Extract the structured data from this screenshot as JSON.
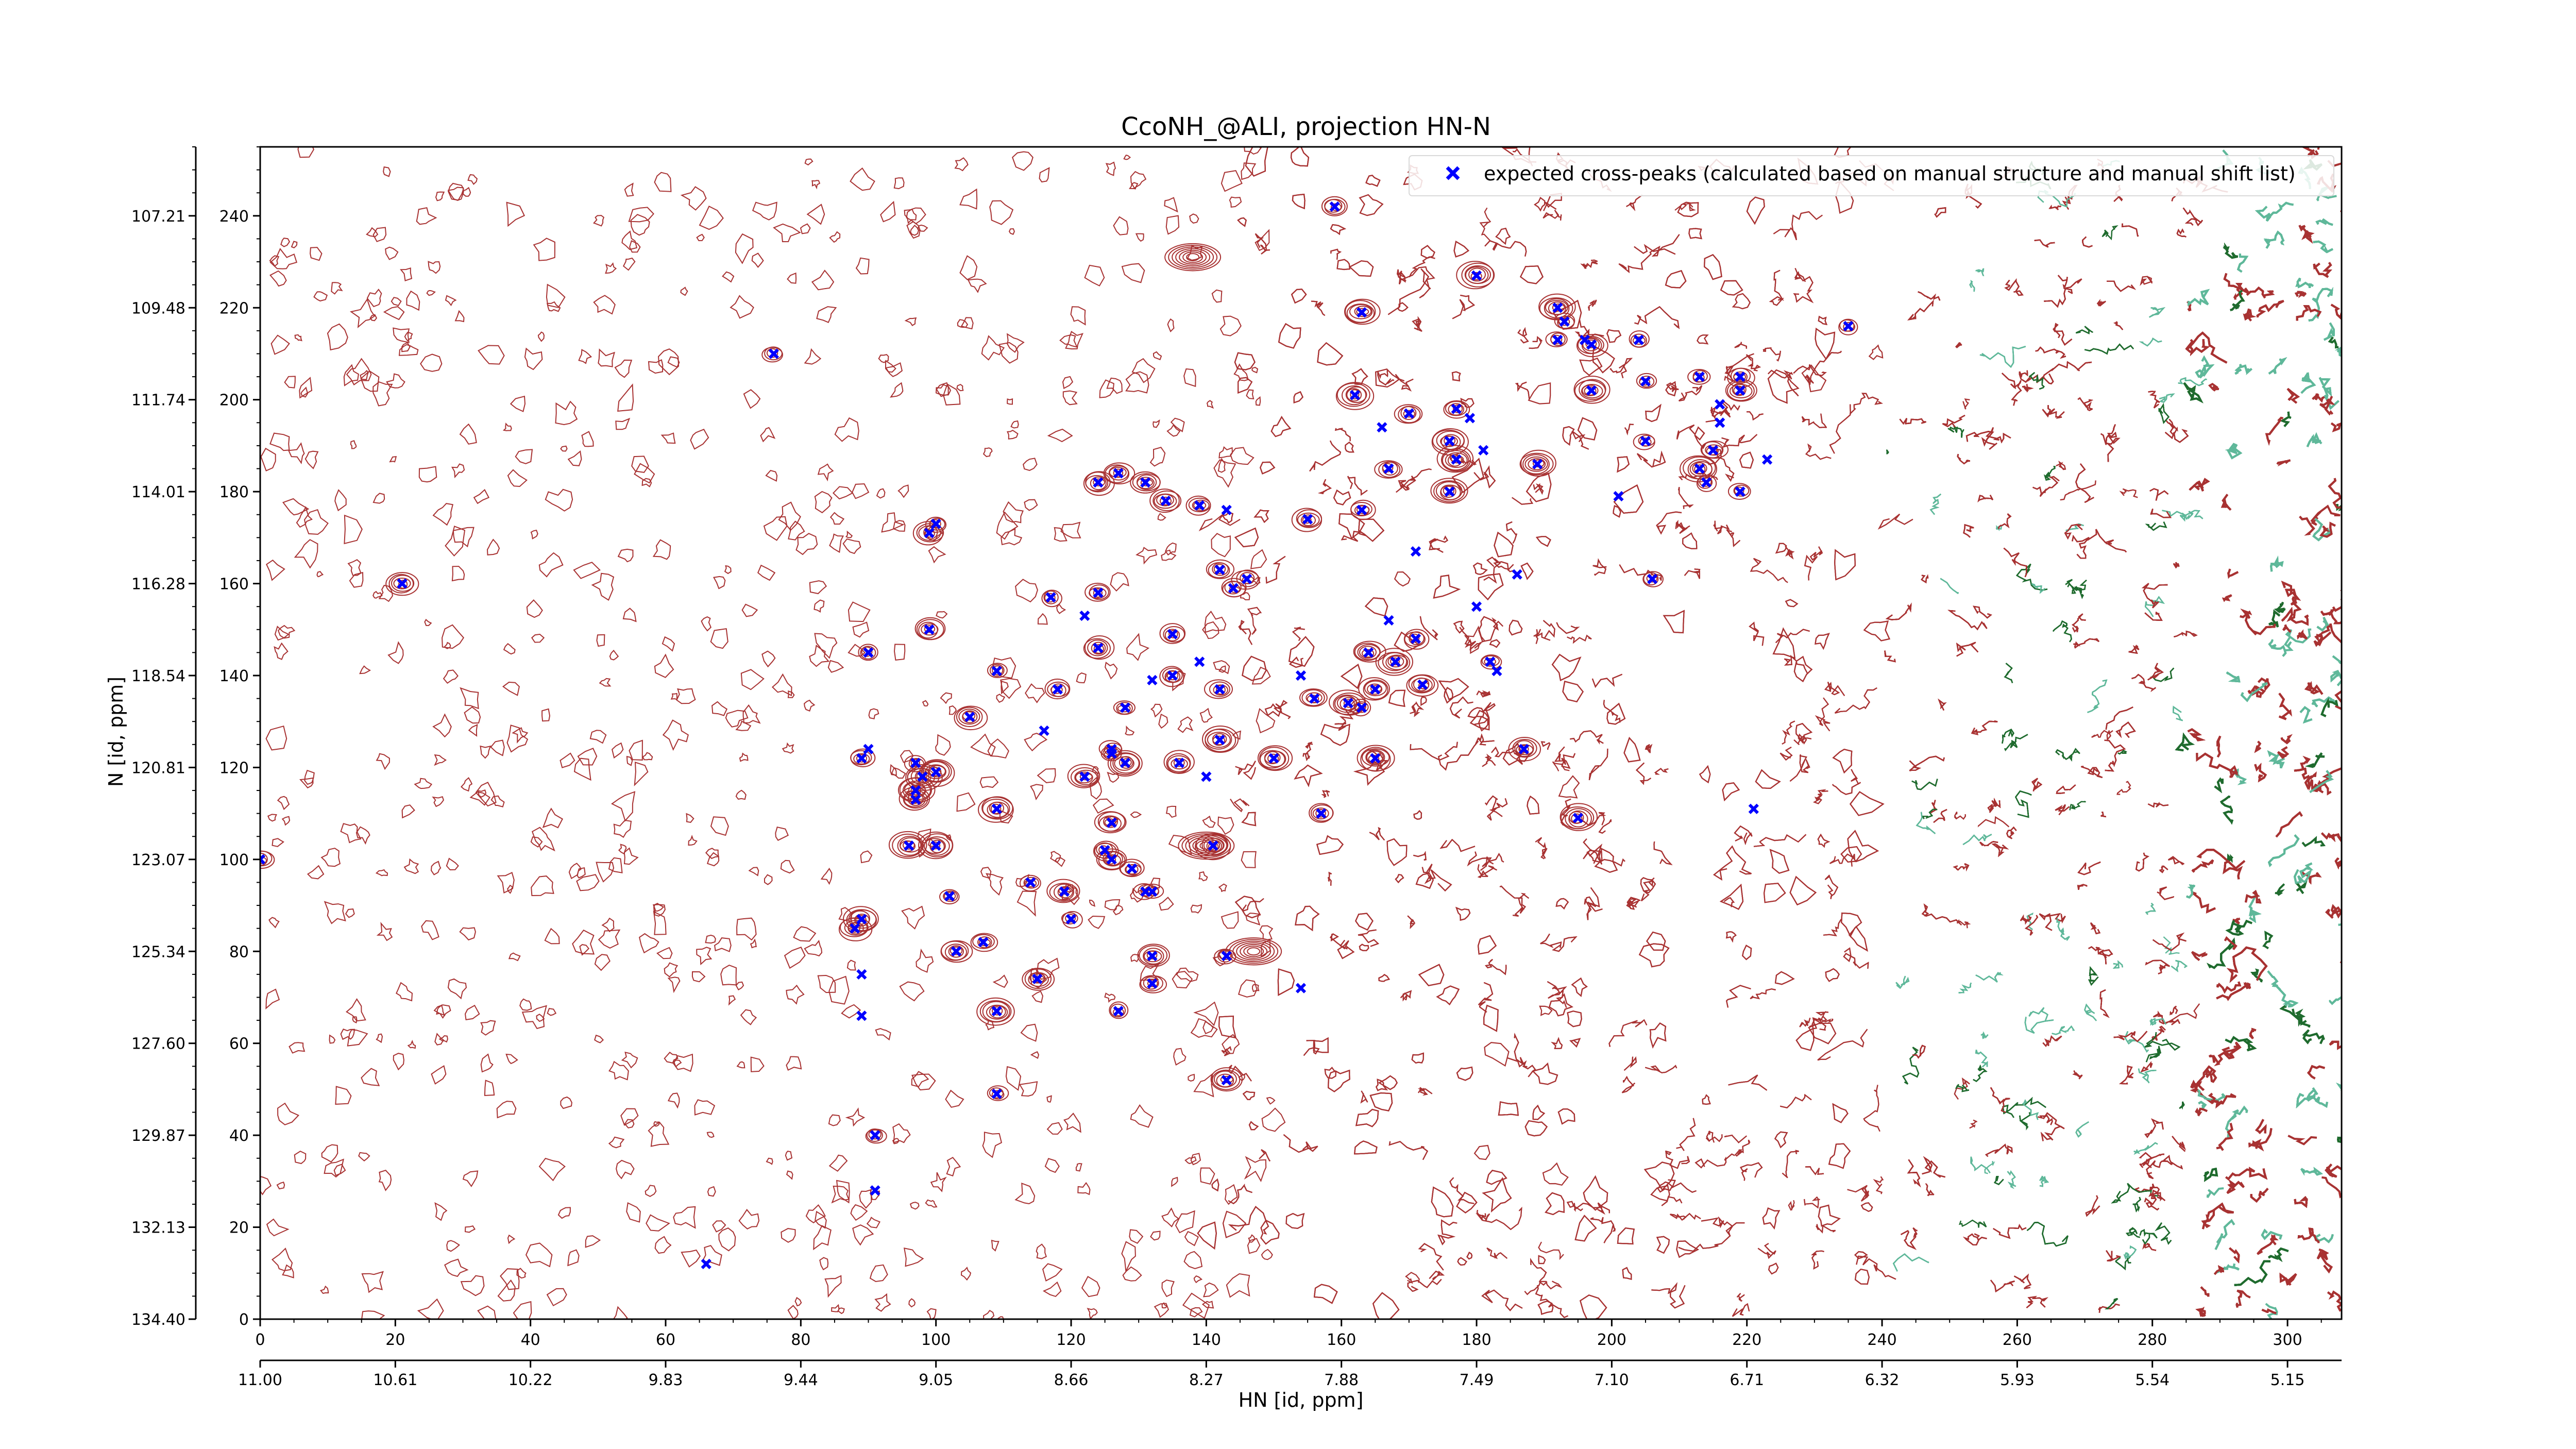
{
  "chart_data": {
    "type": "scatter",
    "title": "CcoNH_@ALI, projection HN-N",
    "xlabel": "HN [id, ppm]",
    "ylabel": "N [id, ppm]",
    "x_index_range": [
      0,
      308
    ],
    "y_index_range": [
      0,
      255
    ],
    "x_index_ticks": [
      "0",
      "20",
      "40",
      "60",
      "80",
      "100",
      "120",
      "140",
      "160",
      "180",
      "200",
      "220",
      "240",
      "260",
      "280",
      "300"
    ],
    "y_index_ticks": [
      "0",
      "20",
      "40",
      "60",
      "80",
      "100",
      "120",
      "140",
      "160",
      "180",
      "200",
      "220",
      "240"
    ],
    "x_ppm_ticks": [
      "11.00",
      "10.61",
      "10.22",
      "9.83",
      "9.44",
      "9.05",
      "8.66",
      "8.27",
      "7.88",
      "7.49",
      "7.10",
      "6.71",
      "6.32",
      "5.93",
      "5.54",
      "5.15"
    ],
    "y_ppm_ticks": [
      "134.40",
      "132.13",
      "129.87",
      "127.60",
      "125.34",
      "123.07",
      "120.81",
      "118.54",
      "116.28",
      "114.01",
      "111.74",
      "109.48",
      "107.21"
    ],
    "contour_colors": {
      "positive": "#a83232",
      "positive_dark": "#1f6b2e",
      "negative": "#5fb89a"
    },
    "series": [
      {
        "name": "expected cross-peaks (calculated based on manual structure and manual shift list)",
        "color": "#0000ff",
        "marker": "x",
        "points": [
          [
            0,
            100
          ],
          [
            21,
            160
          ],
          [
            66,
            12
          ],
          [
            76,
            210
          ],
          [
            89,
            66
          ],
          [
            88,
            85
          ],
          [
            89,
            75
          ],
          [
            89,
            87
          ],
          [
            91,
            40
          ],
          [
            91,
            28
          ],
          [
            89,
            122
          ],
          [
            90,
            124
          ],
          [
            90,
            145
          ],
          [
            96,
            103
          ],
          [
            97,
            113
          ],
          [
            97,
            115
          ],
          [
            98,
            118
          ],
          [
            97,
            121
          ],
          [
            100,
            119
          ],
          [
            100,
            103
          ],
          [
            99,
            150
          ],
          [
            99,
            171
          ],
          [
            100,
            173
          ],
          [
            102,
            92
          ],
          [
            103,
            80
          ],
          [
            105,
            131
          ],
          [
            107,
            82
          ],
          [
            109,
            67
          ],
          [
            109,
            49
          ],
          [
            109,
            111
          ],
          [
            109,
            141
          ],
          [
            114,
            95
          ],
          [
            115,
            74
          ],
          [
            116,
            128
          ],
          [
            117,
            157
          ],
          [
            118,
            137
          ],
          [
            119,
            93
          ],
          [
            120,
            87
          ],
          [
            122,
            153
          ],
          [
            122,
            118
          ],
          [
            124,
            158
          ],
          [
            124,
            146
          ],
          [
            124,
            182
          ],
          [
            125,
            102
          ],
          [
            126,
            100
          ],
          [
            126,
            123
          ],
          [
            126,
            124
          ],
          [
            126,
            108
          ],
          [
            127,
            67
          ],
          [
            127,
            184
          ],
          [
            128,
            121
          ],
          [
            128,
            133
          ],
          [
            129,
            98
          ],
          [
            131,
            93
          ],
          [
            131,
            182
          ],
          [
            132,
            93
          ],
          [
            132,
            73
          ],
          [
            132,
            79
          ],
          [
            132,
            139
          ],
          [
            134,
            178
          ],
          [
            135,
            149
          ],
          [
            135,
            140
          ],
          [
            136,
            121
          ],
          [
            139,
            177
          ],
          [
            139,
            143
          ],
          [
            140,
            118
          ],
          [
            141,
            103
          ],
          [
            142,
            163
          ],
          [
            142,
            137
          ],
          [
            142,
            126
          ],
          [
            143,
            79
          ],
          [
            143,
            52
          ],
          [
            143,
            176
          ],
          [
            144,
            159
          ],
          [
            146,
            161
          ],
          [
            150,
            122
          ],
          [
            154,
            72
          ],
          [
            154,
            140
          ],
          [
            155,
            174
          ],
          [
            156,
            135
          ],
          [
            157,
            110
          ],
          [
            159,
            242
          ],
          [
            161,
            134
          ],
          [
            162,
            201
          ],
          [
            163,
            133
          ],
          [
            163,
            176
          ],
          [
            163,
            219
          ],
          [
            164,
            145
          ],
          [
            165,
            122
          ],
          [
            165,
            137
          ],
          [
            166,
            194
          ],
          [
            167,
            185
          ],
          [
            167,
            152
          ],
          [
            168,
            143
          ],
          [
            170,
            197
          ],
          [
            171,
            148
          ],
          [
            171,
            167
          ],
          [
            172,
            138
          ],
          [
            176,
            191
          ],
          [
            176,
            180
          ],
          [
            177,
            198
          ],
          [
            177,
            187
          ],
          [
            179,
            196
          ],
          [
            180,
            155
          ],
          [
            180,
            227
          ],
          [
            181,
            189
          ],
          [
            182,
            143
          ],
          [
            183,
            141
          ],
          [
            186,
            162
          ],
          [
            187,
            124
          ],
          [
            189,
            186
          ],
          [
            192,
            220
          ],
          [
            192,
            213
          ],
          [
            193,
            217
          ],
          [
            195,
            109
          ],
          [
            196,
            213
          ],
          [
            197,
            212
          ],
          [
            197,
            202
          ],
          [
            201,
            179
          ],
          [
            204,
            213
          ],
          [
            205,
            204
          ],
          [
            205,
            191
          ],
          [
            206,
            161
          ],
          [
            213,
            205
          ],
          [
            213,
            185
          ],
          [
            214,
            182
          ],
          [
            215,
            189
          ],
          [
            216,
            195
          ],
          [
            216,
            199
          ],
          [
            219,
            180
          ],
          [
            219,
            202
          ],
          [
            219,
            205
          ],
          [
            221,
            111
          ],
          [
            223,
            187
          ],
          [
            235,
            216
          ]
        ]
      }
    ],
    "legend_location": "top-right",
    "grid": false
  }
}
